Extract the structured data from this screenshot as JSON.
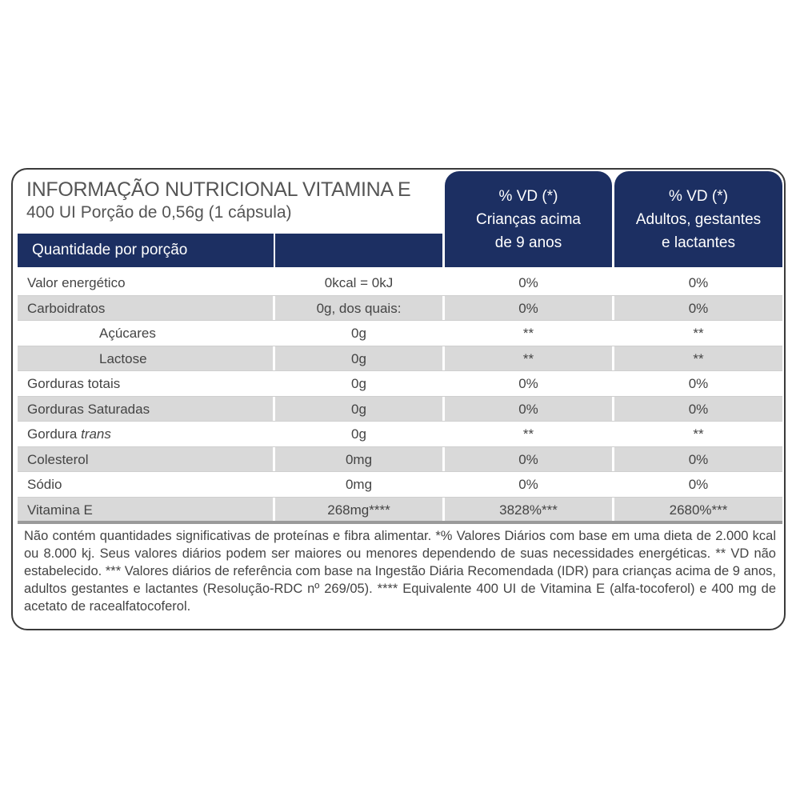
{
  "title": "INFORMAÇÃO NUTRICIONAL VITAMINA E",
  "subtitle": "400 UI Porção de 0,56g (1 cápsula)",
  "header": {
    "quantity_label": "Quantidade por porção",
    "col3": [
      "% VD (*)",
      "Crianças acima",
      "de 9 anos"
    ],
    "col4": [
      "% VD (*)",
      "Adultos, gestantes",
      "e lactantes"
    ]
  },
  "colors": {
    "header_bg": "#1c2f62",
    "row_alt": "#d9d9d9"
  },
  "rows": [
    {
      "name": "Valor energético",
      "amount": "0kcal = 0kJ",
      "vd_children": "0%",
      "vd_adults": "0%"
    },
    {
      "name": "Carboidratos",
      "amount": "0g, dos quais:",
      "vd_children": "0%",
      "vd_adults": "0%"
    },
    {
      "name": "Açúcares",
      "amount": "0g",
      "vd_children": "**",
      "vd_adults": "**"
    },
    {
      "name": "Lactose",
      "amount": "0g",
      "vd_children": "**",
      "vd_adults": "**"
    },
    {
      "name": "Gorduras totais",
      "amount": "0g",
      "vd_children": "0%",
      "vd_adults": "0%"
    },
    {
      "name": "Gorduras Saturadas",
      "amount": "0g",
      "vd_children": "0%",
      "vd_adults": "0%"
    },
    {
      "name": "Gordura ",
      "name_italic": "trans",
      "amount": "0g",
      "vd_children": "**",
      "vd_adults": "**"
    },
    {
      "name": "Colesterol",
      "amount": "0mg",
      "vd_children": "0%",
      "vd_adults": "0%"
    },
    {
      "name": "Sódio",
      "amount": "0mg",
      "vd_children": "0%",
      "vd_adults": "0%"
    },
    {
      "name": "Vitamina E",
      "amount": "268mg****",
      "vd_children": "3828%***",
      "vd_adults": "2680%***"
    }
  ],
  "footnote": "Não contém quantidades significativas de proteínas e fibra alimentar. *% Valores Diários com base em uma dieta de 2.000 kcal ou 8.000 kj. Seus valores diários podem ser maiores ou menores dependendo de suas necessidades energéticas. ** VD não estabelecido. *** Valores diários de referência com base na Ingestão Diária Recomendada (IDR) para crianças acima de 9 anos, adultos gestantes e lactantes  (Resolução-RDC nº 269/05). **** Equivalente 400 UI de Vitamina E (alfa-tocoferol) e 400 mg de acetato de racealfatocoferol."
}
